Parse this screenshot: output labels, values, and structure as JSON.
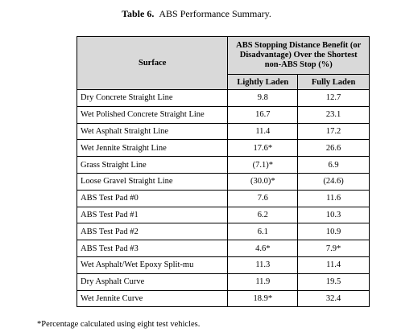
{
  "title": {
    "label": "Table 6.",
    "text": "ABS Performance Summary."
  },
  "table": {
    "header": {
      "surface": "Surface",
      "group": "ABS Stopping Distance Benefit (or Disadvantage) Over the Shortest non-ABS Stop (%)",
      "columns": [
        "Lightly Laden",
        "Fully Laden"
      ]
    },
    "rows": [
      [
        "Dry Concrete Straight Line",
        "9.8",
        "12.7"
      ],
      [
        "Wet Polished Concrete Straight Line",
        "16.7",
        "23.1"
      ],
      [
        "Wet Asphalt Straight Line",
        "11.4",
        "17.2"
      ],
      [
        "Wet Jennite Straight Line",
        "17.6*",
        "26.6"
      ],
      [
        "Grass Straight Line",
        "(7.1)*",
        "6.9"
      ],
      [
        "Loose Gravel Straight Line",
        "(30.0)*",
        "(24.6)"
      ],
      [
        "ABS Test Pad #0",
        "7.6",
        "11.6"
      ],
      [
        "ABS Test Pad #1",
        "6.2",
        "10.3"
      ],
      [
        "ABS Test Pad #2",
        "6.1",
        "10.9"
      ],
      [
        "ABS Test Pad #3",
        "4.6*",
        "7.9*"
      ],
      [
        "Wet Asphalt/Wet Epoxy Split-mu",
        "11.3",
        "11.4"
      ],
      [
        "Dry Asphalt Curve",
        "11.9",
        "19.5"
      ],
      [
        "Wet Jennite Curve",
        "18.9*",
        "32.4"
      ]
    ]
  },
  "footnote": "*Percentage calculated using eight test vehicles."
}
